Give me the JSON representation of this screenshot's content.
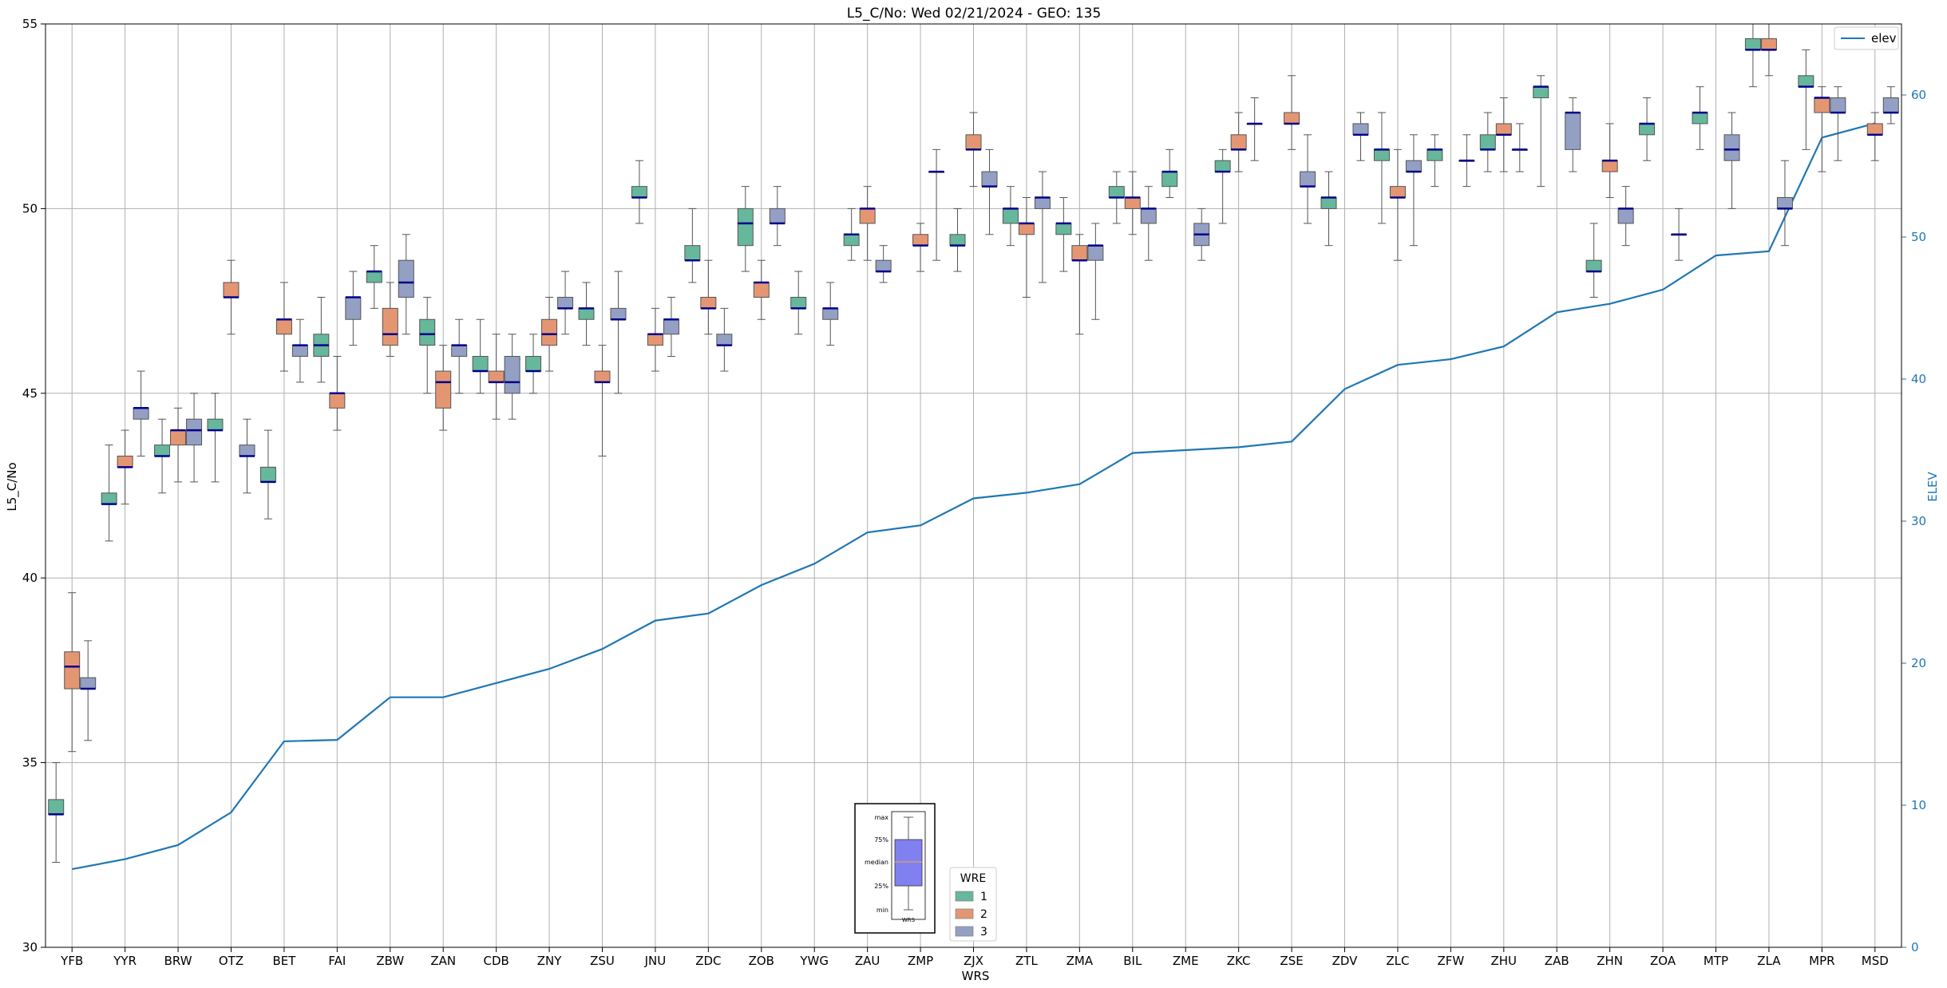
{
  "chart_data": {
    "type": "box",
    "title": "L5_C/No: Wed 02/21/2024 - GEO: 135",
    "xlabel": "WRS",
    "ylabel": "L5_C/No",
    "y2label": "ELEV",
    "ylim": [
      30,
      55
    ],
    "y2lim": [
      0,
      65
    ],
    "yticks": [
      30,
      35,
      40,
      45,
      50,
      55
    ],
    "y2ticks": [
      0,
      10,
      20,
      30,
      40,
      50,
      60
    ],
    "grid": true,
    "categories": [
      "YFB",
      "YYR",
      "BRW",
      "OTZ",
      "BET",
      "FAI",
      "ZBW",
      "ZAN",
      "CDB",
      "ZNY",
      "ZSU",
      "JNU",
      "ZDC",
      "ZOB",
      "YWG",
      "ZAU",
      "ZMP",
      "ZJX",
      "ZTL",
      "ZMA",
      "BIL",
      "ZME",
      "ZKC",
      "ZSE",
      "ZDV",
      "ZLC",
      "ZFW",
      "ZHU",
      "ZAB",
      "ZHN",
      "ZOA",
      "MTP",
      "ZLA",
      "MPR",
      "MSD"
    ],
    "legend_title": "WRE",
    "legend_placement": "bottom-center",
    "series": [
      {
        "name": "1",
        "color": "#66b79c",
        "stats": [
          [
            32.3,
            33.6,
            33.6,
            34.0,
            35.0
          ],
          [
            41.0,
            42.0,
            42.0,
            42.3,
            43.6
          ],
          [
            42.3,
            43.3,
            43.3,
            43.6,
            44.3
          ],
          [
            42.6,
            44.0,
            44.0,
            44.3,
            45.0
          ],
          [
            41.6,
            42.6,
            42.6,
            43.0,
            44.0
          ],
          [
            45.3,
            46.0,
            46.3,
            46.6,
            47.6
          ],
          [
            47.3,
            48.0,
            48.3,
            48.3,
            49.0
          ],
          [
            45.0,
            46.3,
            46.6,
            47.0,
            47.6
          ],
          [
            45.0,
            45.6,
            45.6,
            46.0,
            47.0
          ],
          [
            45.0,
            45.6,
            45.6,
            46.0,
            46.6
          ],
          [
            46.3,
            47.0,
            47.3,
            47.3,
            48.0
          ],
          [
            49.6,
            50.3,
            50.3,
            50.6,
            51.3
          ],
          [
            48.0,
            48.6,
            48.6,
            49.0,
            50.0
          ],
          [
            48.3,
            49.0,
            49.6,
            50.0,
            50.6
          ],
          [
            46.6,
            47.3,
            47.3,
            47.6,
            48.3
          ],
          [
            48.6,
            49.0,
            49.3,
            49.3,
            50.0
          ],
          null,
          [
            48.3,
            49.0,
            49.0,
            49.3,
            50.0
          ],
          [
            49.0,
            49.6,
            50.0,
            50.0,
            50.6
          ],
          [
            48.3,
            49.3,
            49.6,
            49.6,
            50.3
          ],
          [
            49.6,
            50.3,
            50.3,
            50.6,
            51.0
          ],
          [
            50.3,
            50.6,
            51.0,
            51.0,
            51.6
          ],
          [
            49.6,
            51.0,
            51.0,
            51.3,
            51.6
          ],
          null,
          [
            49.0,
            50.0,
            50.3,
            50.3,
            51.0
          ],
          [
            49.6,
            51.3,
            51.6,
            51.6,
            52.6
          ],
          [
            50.6,
            51.3,
            51.6,
            51.6,
            52.0
          ],
          [
            51.0,
            51.6,
            51.6,
            52.0,
            52.6
          ],
          [
            50.6,
            53.0,
            53.3,
            53.3,
            53.6
          ],
          [
            47.6,
            48.3,
            48.3,
            48.6,
            49.6
          ],
          [
            51.3,
            52.0,
            52.3,
            52.3,
            53.0
          ],
          [
            51.6,
            52.3,
            52.6,
            52.6,
            53.3
          ],
          [
            53.3,
            54.3,
            54.3,
            54.6,
            55.0
          ],
          [
            51.6,
            53.3,
            53.3,
            53.6,
            54.3
          ],
          null
        ]
      },
      {
        "name": "2",
        "color": "#e49673",
        "stats": [
          [
            35.3,
            37.0,
            37.6,
            38.0,
            39.6
          ],
          [
            42.0,
            43.0,
            43.0,
            43.3,
            44.0
          ],
          [
            42.6,
            43.6,
            44.0,
            44.0,
            44.6
          ],
          [
            46.6,
            47.6,
            47.6,
            48.0,
            48.6
          ],
          [
            45.6,
            46.6,
            47.0,
            47.0,
            48.0
          ],
          [
            44.0,
            44.6,
            45.0,
            45.0,
            46.0
          ],
          [
            46.0,
            46.3,
            46.6,
            47.3,
            48.0
          ],
          [
            44.0,
            44.6,
            45.3,
            45.6,
            46.3
          ],
          [
            44.3,
            45.3,
            45.3,
            45.6,
            46.6
          ],
          [
            45.6,
            46.3,
            46.6,
            47.0,
            47.6
          ],
          [
            43.3,
            45.3,
            45.3,
            45.6,
            46.3
          ],
          [
            45.6,
            46.3,
            46.6,
            46.6,
            47.3
          ],
          [
            46.6,
            47.3,
            47.3,
            47.6,
            48.6
          ],
          [
            47.0,
            47.6,
            48.0,
            48.0,
            48.6
          ],
          null,
          [
            48.6,
            49.6,
            50.0,
            50.0,
            50.6
          ],
          [
            48.3,
            49.0,
            49.0,
            49.3,
            49.6
          ],
          [
            50.6,
            51.6,
            51.6,
            52.0,
            52.6
          ],
          [
            47.6,
            49.3,
            49.6,
            49.6,
            50.3
          ],
          [
            46.6,
            48.6,
            48.6,
            49.0,
            49.3
          ],
          [
            49.3,
            50.0,
            50.3,
            50.3,
            51.0
          ],
          null,
          [
            51.0,
            51.6,
            51.6,
            52.0,
            52.6
          ],
          [
            51.6,
            52.3,
            52.3,
            52.6,
            53.6
          ],
          null,
          [
            48.6,
            50.3,
            50.3,
            50.6,
            51.6
          ],
          null,
          [
            51.0,
            52.0,
            52.0,
            52.3,
            53.0
          ],
          null,
          [
            50.3,
            51.0,
            51.3,
            51.3,
            52.3
          ],
          null,
          null,
          [
            53.6,
            54.3,
            54.3,
            54.6,
            55.0
          ],
          [
            51.0,
            52.6,
            53.0,
            53.0,
            53.3
          ],
          [
            51.3,
            52.0,
            52.0,
            52.3,
            52.6
          ]
        ]
      },
      {
        "name": "3",
        "color": "#949fc4",
        "stats": [
          [
            35.6,
            37.0,
            37.0,
            37.3,
            38.3
          ],
          [
            43.3,
            44.3,
            44.6,
            44.6,
            45.6
          ],
          [
            42.6,
            43.6,
            44.0,
            44.3,
            45.0
          ],
          [
            42.3,
            43.3,
            43.3,
            43.6,
            44.3
          ],
          [
            45.3,
            46.0,
            46.3,
            46.3,
            47.0
          ],
          [
            46.3,
            47.0,
            47.6,
            47.6,
            48.3
          ],
          [
            46.6,
            47.6,
            48.0,
            48.6,
            49.3
          ],
          [
            45.0,
            46.0,
            46.3,
            46.3,
            47.0
          ],
          [
            44.3,
            45.0,
            45.3,
            46.0,
            46.6
          ],
          [
            46.6,
            47.3,
            47.3,
            47.6,
            48.3
          ],
          [
            45.0,
            47.0,
            47.0,
            47.3,
            48.3
          ],
          [
            46.0,
            46.6,
            47.0,
            47.0,
            47.6
          ],
          [
            45.6,
            46.3,
            46.3,
            46.6,
            47.3
          ],
          [
            49.0,
            49.6,
            49.6,
            50.0,
            50.6
          ],
          [
            46.3,
            47.0,
            47.3,
            47.3,
            48.0
          ],
          [
            48.0,
            48.3,
            48.3,
            48.6,
            49.0
          ],
          [
            48.6,
            51.0,
            51.0,
            51.0,
            51.6
          ],
          [
            49.3,
            50.6,
            50.6,
            51.0,
            51.6
          ],
          [
            48.0,
            50.0,
            50.3,
            50.3,
            51.0
          ],
          [
            47.0,
            48.6,
            49.0,
            49.0,
            49.6
          ],
          [
            48.6,
            49.6,
            50.0,
            50.0,
            50.6
          ],
          [
            48.6,
            49.0,
            49.3,
            49.6,
            50.0
          ],
          [
            51.3,
            52.3,
            52.3,
            52.3,
            53.0
          ],
          [
            49.6,
            50.6,
            50.6,
            51.0,
            52.0
          ],
          [
            51.3,
            52.0,
            52.0,
            52.3,
            52.6
          ],
          [
            49.0,
            51.0,
            51.0,
            51.3,
            52.0
          ],
          [
            50.6,
            51.3,
            51.3,
            51.3,
            52.0
          ],
          [
            51.0,
            51.6,
            51.6,
            51.6,
            52.3
          ],
          [
            51.0,
            51.6,
            52.6,
            52.6,
            53.0
          ],
          [
            49.0,
            49.6,
            50.0,
            50.0,
            50.6
          ],
          [
            48.6,
            49.3,
            49.3,
            49.3,
            50.0
          ],
          [
            50.0,
            51.3,
            51.6,
            52.0,
            52.6
          ],
          [
            49.0,
            50.0,
            50.0,
            50.3,
            51.3
          ],
          [
            51.3,
            52.6,
            52.6,
            53.0,
            53.3
          ],
          [
            52.3,
            52.6,
            52.6,
            53.0,
            53.3
          ]
        ]
      }
    ],
    "elev": {
      "name": "elev",
      "color": "#1f77b4",
      "values": [
        5.5,
        6.2,
        7.2,
        9.5,
        14.5,
        14.6,
        17.6,
        17.6,
        18.6,
        19.6,
        21.0,
        23.0,
        23.5,
        25.5,
        27.0,
        29.2,
        29.7,
        31.6,
        32.0,
        32.6,
        34.8,
        35.0,
        35.2,
        35.6,
        39.3,
        41.0,
        41.4,
        42.3,
        44.7,
        45.3,
        46.3,
        48.7,
        49.0,
        57.0,
        58.0
      ]
    },
    "inset_legend": {
      "labels": [
        "max",
        "75%",
        "median",
        "25%",
        "min",
        "WRS"
      ]
    }
  }
}
